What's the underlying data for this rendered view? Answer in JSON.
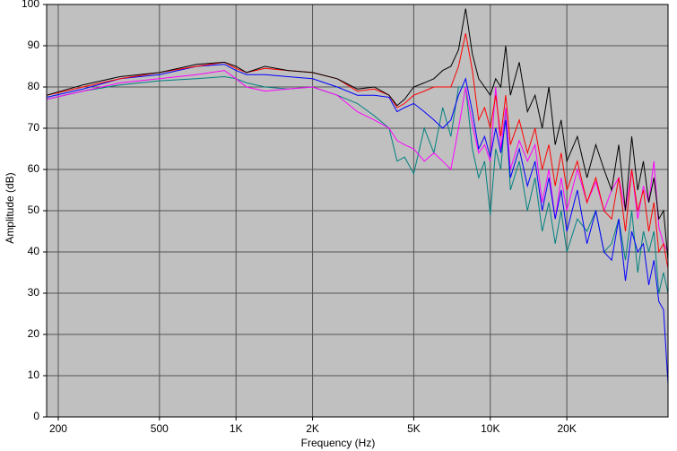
{
  "chart_data": {
    "type": "line",
    "xlabel": "Frequency (Hz)",
    "ylabel": "Amplitude (dB)",
    "log_x": true,
    "grid": true,
    "xlim": [
      180,
      50000
    ],
    "ylim": [
      0,
      100
    ],
    "xticks": [
      200,
      500,
      {
        "value": 1000,
        "label": "1K"
      },
      {
        "value": 2000,
        "label": "2K"
      },
      {
        "value": 5000,
        "label": "5K"
      },
      {
        "value": 10000,
        "label": "10K"
      },
      {
        "value": 20000,
        "label": "20K"
      }
    ],
    "yticks": [
      0,
      10,
      20,
      30,
      40,
      50,
      60,
      70,
      80,
      90,
      100
    ],
    "x": [
      180,
      250,
      350,
      500,
      700,
      900,
      1000,
      1100,
      1300,
      1600,
      2000,
      2500,
      3000,
      3500,
      4000,
      4300,
      4600,
      5000,
      5500,
      6000,
      6500,
      7000,
      7500,
      8000,
      8500,
      9000,
      9500,
      10000,
      10500,
      11000,
      11500,
      12000,
      13000,
      14000,
      15000,
      16000,
      17000,
      18000,
      19000,
      20000,
      22000,
      24000,
      26000,
      28000,
      30000,
      32000,
      34000,
      36000,
      38000,
      40000,
      42000,
      44000,
      46000,
      48000,
      50000
    ],
    "series": [
      {
        "color": "#008080",
        "values": [
          77,
          79,
          80.5,
          81.5,
          82,
          82.5,
          82,
          81,
          80,
          79.5,
          80,
          78,
          76,
          73,
          70,
          62,
          63,
          59,
          70,
          64,
          75,
          68,
          80,
          80,
          65,
          58,
          62,
          49,
          65,
          60,
          75,
          55,
          62,
          50,
          58,
          45,
          52,
          42,
          50,
          40,
          48,
          45,
          50,
          40,
          42,
          48,
          38,
          50,
          35,
          45,
          40,
          45,
          30,
          35,
          30
        ]
      },
      {
        "color": "#ff00ff",
        "values": [
          77,
          79,
          81,
          82,
          83,
          84,
          82,
          80,
          79,
          79.5,
          80,
          78,
          74,
          72,
          70,
          67,
          66,
          65,
          62,
          64,
          62,
          60,
          70,
          80,
          71,
          64,
          66,
          62,
          80,
          65,
          75,
          60,
          67,
          62,
          66,
          52,
          60,
          48,
          58,
          50,
          60,
          52,
          57,
          50,
          55,
          58,
          50,
          60,
          48,
          56,
          52,
          62,
          46,
          42,
          40
        ]
      },
      {
        "color": "#0000ff",
        "values": [
          77.5,
          79.5,
          82,
          83,
          85,
          85.5,
          84,
          83,
          83,
          82.5,
          82,
          80,
          78,
          78,
          77.5,
          74,
          75,
          76,
          74,
          72,
          70,
          72,
          78,
          82,
          74,
          65,
          68,
          63,
          70,
          64,
          72,
          58,
          65,
          56,
          62,
          50,
          58,
          48,
          55,
          45,
          55,
          42,
          50,
          40,
          38,
          48,
          33,
          45,
          40,
          42,
          32,
          38,
          28,
          26,
          8
        ]
      },
      {
        "color": "#ff0000",
        "values": [
          78,
          80,
          82,
          83.5,
          85,
          86,
          84.5,
          83.5,
          84.5,
          84,
          83.5,
          82,
          79,
          79.5,
          78,
          75,
          76,
          78,
          79,
          80,
          80,
          80,
          85,
          93,
          84,
          72,
          75,
          70,
          78,
          68,
          78,
          66,
          72,
          64,
          70,
          60,
          66,
          56,
          64,
          55,
          62,
          52,
          58,
          50,
          48,
          58,
          45,
          60,
          50,
          55,
          45,
          52,
          40,
          42,
          36
        ]
      },
      {
        "color": "#000000",
        "values": [
          78,
          80.5,
          82.5,
          83.5,
          85.5,
          86,
          85,
          83.5,
          85,
          84,
          83.5,
          82,
          79.5,
          80,
          78,
          75.5,
          77,
          80,
          81,
          82,
          84,
          85,
          89,
          99,
          88,
          82,
          80,
          78,
          82,
          80,
          90,
          78,
          86,
          74,
          78,
          70,
          80,
          66,
          72,
          62,
          68,
          58,
          66,
          60,
          55,
          66,
          50,
          68,
          55,
          62,
          52,
          58,
          48,
          50,
          38
        ]
      }
    ]
  }
}
